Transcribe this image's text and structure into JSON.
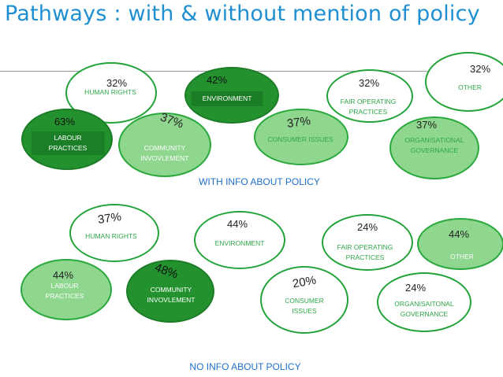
{
  "title": "Pathways : with & without mention of policy",
  "with_policy": {
    "caption": "WITH INFO ABOUT POLICY",
    "items": [
      {
        "label": "HUMAN RIGHTS",
        "percent": "32%"
      },
      {
        "label": "ENVIRONMENT",
        "percent": "42%"
      },
      {
        "label": "FAIR OPERATING\nPRACTICES",
        "percent": "32%"
      },
      {
        "label": "OTHER",
        "percent": "32%"
      },
      {
        "label": "LABOUR\nPRACTICES",
        "percent": "63%"
      },
      {
        "label": "COMMUNITY\nINVOVLEMENT",
        "percent": "37%"
      },
      {
        "label": "CONSUMER ISSUES",
        "percent": "37%"
      },
      {
        "label": "ORGANISATIONAL\nGOVERNANCE",
        "percent": "37%"
      }
    ]
  },
  "no_policy": {
    "caption": "NO INFO ABOUT POLICY",
    "items": [
      {
        "label": "HUMAN RIGHTS",
        "percent": "37%"
      },
      {
        "label": "ENVIRONMENT",
        "percent": "44%"
      },
      {
        "label": "FAIR OPERATING\nPRACTICES",
        "percent": "24%"
      },
      {
        "label": "OTHER",
        "percent": "44%"
      },
      {
        "label": "LABOUR\nPRACTICES",
        "percent": "44%"
      },
      {
        "label": "COMMUNITY\nINVOVLEMENT",
        "percent": "48%"
      },
      {
        "label": "CONSUMER\nISSUES",
        "percent": "20%"
      },
      {
        "label": "ORGANISAITONAL\nGOVERNANCE",
        "percent": "24%"
      }
    ]
  },
  "colors": {
    "title": "#1f8fd1",
    "caption": "#1f6fc9",
    "bubble_outline": "#22a33a",
    "bubble_light": "#8fd68f",
    "bubble_dark": "#23922e"
  }
}
